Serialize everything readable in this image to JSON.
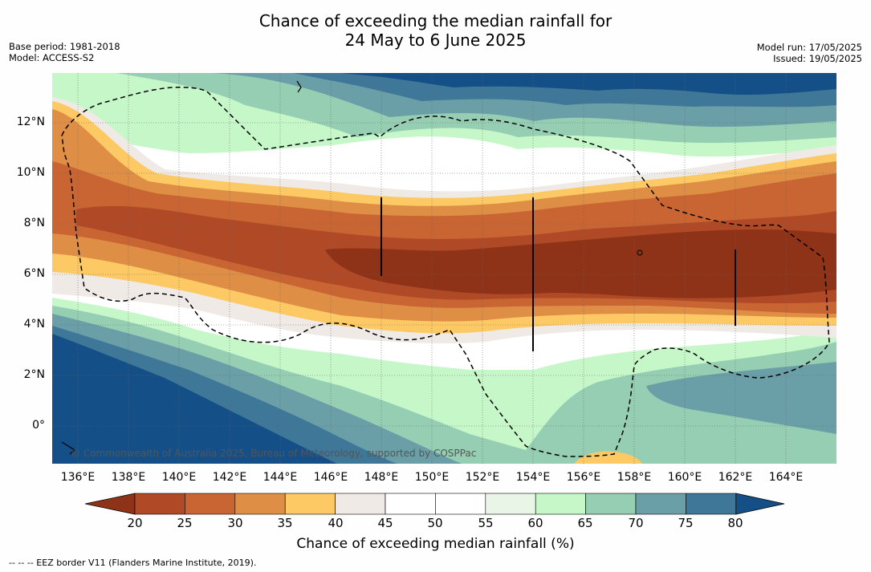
{
  "title": {
    "line1": "Chance of exceeding the median rainfall for",
    "line2": "24 May to 6 June 2025"
  },
  "meta_left": {
    "base_period": "Base period: 1981-2018",
    "model": "Model: ACCESS-S2"
  },
  "meta_right": {
    "model_run": "Model run: 17/05/2025",
    "issued": "Issued: 19/05/2025"
  },
  "map": {
    "lat_labels": [
      "12°N",
      "10°N",
      "8°N",
      "6°N",
      "4°N",
      "2°N",
      "0°"
    ],
    "lon_labels": [
      "136°E",
      "138°E",
      "140°E",
      "142°E",
      "144°E",
      "146°E",
      "148°E",
      "150°E",
      "152°E",
      "154°E",
      "156°E",
      "158°E",
      "160°E",
      "162°E",
      "164°E"
    ],
    "copyright": "© Commonwealth of Australia 2025, Bureau of Meteorology, supported by COSPPac"
  },
  "colorbar": {
    "ticks": [
      "20",
      "25",
      "30",
      "35",
      "40",
      "45",
      "50",
      "55",
      "60",
      "65",
      "70",
      "75",
      "80"
    ],
    "colors": [
      "#8f3318",
      "#b04a26",
      "#c96433",
      "#df8e45",
      "#fdc964",
      "#efeae6",
      "#ffffff",
      "#ffffff",
      "#e9f5e7",
      "#c6f7c8",
      "#96ceb4",
      "#6a9fa8",
      "#3f7798",
      "#154f87"
    ],
    "title": "Chance of exceeding median rainfall (%)"
  },
  "footer": "--  --  -- EEZ border V11 (Flanders Marine Institute, 2019)."
}
